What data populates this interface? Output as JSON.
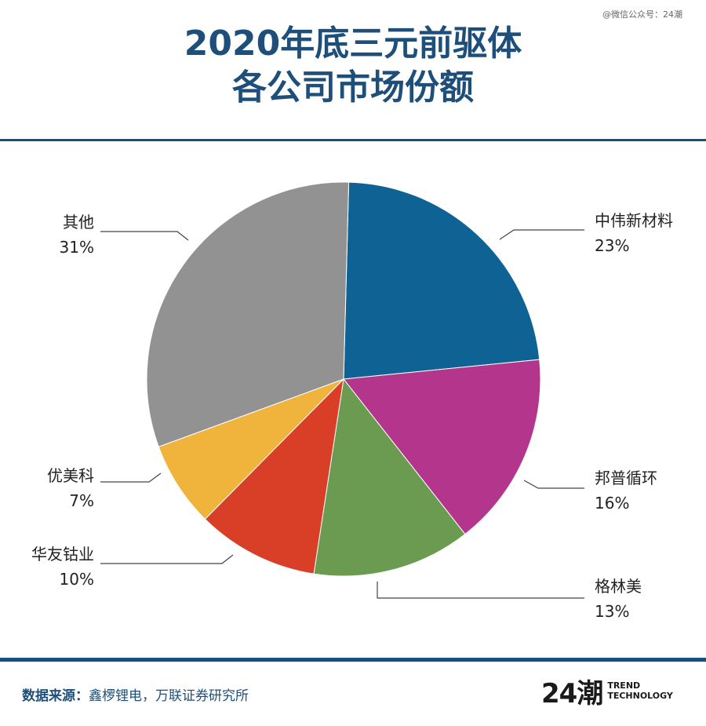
{
  "watermark": "@微信公众号：24潮",
  "title_lines": [
    "2020年底三元前驱体",
    "各公司市场份额"
  ],
  "chart_data": {
    "type": "pie",
    "title": "2020年底三元前驱体各公司市场份额",
    "unit": "%",
    "slices": [
      {
        "label": "中伟新材料",
        "value": 23,
        "value_text": "23%",
        "color": "#0f6394"
      },
      {
        "label": "邦普循环",
        "value": 16,
        "value_text": "16%",
        "color": "#b4358c"
      },
      {
        "label": "格林美",
        "value": 13,
        "value_text": "13%",
        "color": "#6b9a51"
      },
      {
        "label": "华友钴业",
        "value": 10,
        "value_text": "10%",
        "color": "#d93e26"
      },
      {
        "label": "优美科",
        "value": 7,
        "value_text": "7%",
        "color": "#f0b43c"
      },
      {
        "label": "其他",
        "value": 31,
        "value_text": "31%",
        "color": "#929292"
      }
    ]
  },
  "footer": {
    "source_label": "数据来源：",
    "source_text": "鑫椤锂电，万联证券研究所",
    "logo_mark": "24潮",
    "logo_text_line1": "TREND",
    "logo_text_line2": "TECHNOLOGY"
  },
  "colors": {
    "brand": "#1d4f7a"
  }
}
